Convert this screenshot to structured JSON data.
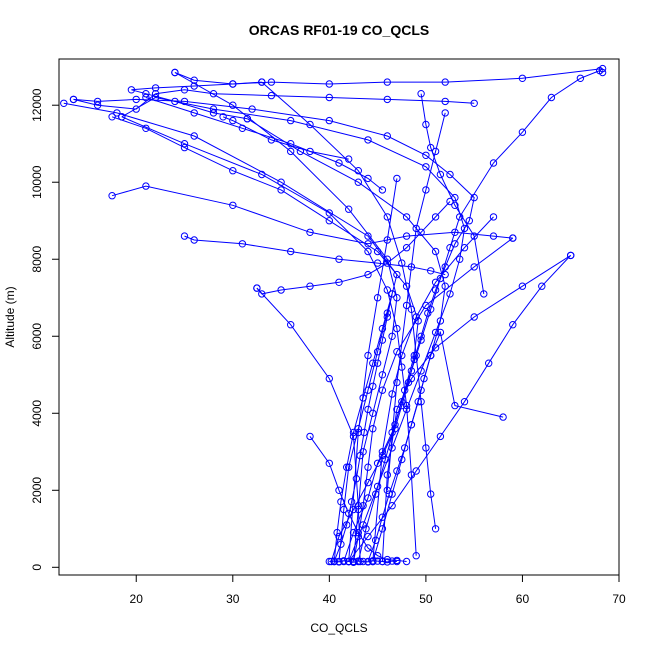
{
  "chart_data": {
    "type": "line",
    "title": "ORCAS RF01-19 CO_QCLS",
    "xlabel": "CO_QCLS",
    "ylabel": "Altitude (m)",
    "xlim": [
      12,
      70
    ],
    "ylim": [
      -200,
      13200
    ],
    "xticks": [
      20,
      30,
      40,
      50,
      60,
      70
    ],
    "yticks": [
      0,
      2000,
      4000,
      6000,
      8000,
      10000,
      12000
    ],
    "grid": false,
    "legend": "none",
    "series_color": "#0000ff",
    "marker": "open-circle",
    "series": [
      {
        "x": [
          40.2,
          41.0,
          42.5,
          44.0,
          45.5,
          46.8,
          47.5,
          48.2,
          48.8,
          49.5,
          50.2,
          51.0,
          52.0,
          53.0,
          54.5,
          55.0,
          52.5,
          50.0,
          46.0,
          40.0,
          32.0,
          25.0,
          20.0,
          16.0,
          13.5
        ],
        "y": [
          150,
          800,
          1500,
          2200,
          2900,
          3600,
          4200,
          4800,
          5400,
          6000,
          6600,
          7200,
          7800,
          8400,
          9000,
          9600,
          10200,
          10700,
          11200,
          11600,
          11900,
          12100,
          12150,
          12100,
          12150
        ]
      },
      {
        "x": [
          12.5,
          18.0,
          26.0,
          35.0,
          44.0,
          47.0,
          46.0,
          45.0,
          44.0,
          43.0,
          42.0,
          41.5,
          41.0
        ],
        "y": [
          12050,
          11800,
          11200,
          10000,
          8600,
          7600,
          6600,
          5600,
          4600,
          3600,
          2600,
          1500,
          150
        ]
      },
      {
        "x": [
          41.5,
          42.5,
          44.0,
          45.0,
          46.5,
          47.5,
          48.5,
          49.5,
          50.5,
          51.5,
          52.5,
          53.5,
          57.0,
          60.0,
          63.0,
          66.0,
          68.0,
          68.3
        ],
        "y": [
          150,
          900,
          1800,
          2700,
          3500,
          4300,
          5100,
          5900,
          6700,
          7500,
          8300,
          9100,
          10500,
          11300,
          12200,
          12700,
          12900,
          12850
        ]
      },
      {
        "x": [
          68.3,
          60.0,
          52.0,
          46.0,
          40.0,
          34.0,
          30.0,
          26.0,
          24.0
        ],
        "y": [
          12950,
          12700,
          12600,
          12600,
          12550,
          12600,
          12550,
          12650,
          12850
        ]
      },
      {
        "x": [
          24.0,
          30.0,
          36.0,
          42.0,
          46.0,
          47.0,
          46.5,
          45.5,
          44.5,
          43.5,
          43.0,
          42.5
        ],
        "y": [
          12850,
          12000,
          10800,
          9300,
          8000,
          7000,
          6000,
          5000,
          4000,
          3000,
          1500,
          150
        ]
      },
      {
        "x": [
          43.0,
          43.8,
          44.8,
          45.8,
          46.8,
          47.8,
          48.8,
          49.2,
          48.0,
          45.0,
          40.0,
          35.0,
          30.0,
          25.0,
          21.0,
          17.5
        ],
        "y": [
          150,
          1000,
          1900,
          2800,
          3700,
          4600,
          5500,
          6400,
          7300,
          8200,
          9000,
          9800,
          10300,
          10900,
          11400,
          11700
        ]
      },
      {
        "x": [
          17.5,
          21.0,
          30.0,
          38.0,
          44.0,
          48.0,
          53.0,
          57.0,
          59.0
        ],
        "y": [
          9650,
          9900,
          9400,
          8700,
          8400,
          8600,
          8700,
          8600,
          8550
        ]
      },
      {
        "x": [
          59.0,
          55.0,
          50.0,
          47.0,
          45.5,
          44.5,
          44.0,
          43.5,
          43.0,
          42.5
        ],
        "y": [
          8550,
          7800,
          6800,
          5600,
          4600,
          3600,
          2600,
          1600,
          800,
          150
        ]
      },
      {
        "x": [
          42.0,
          43.5,
          45.0,
          46.5,
          48.0,
          49.5,
          51.0,
          52.5,
          53.5,
          54.0,
          53.0,
          50.0,
          44.0,
          36.0,
          28.0,
          22.0,
          18.5
        ],
        "y": [
          150,
          1100,
          2100,
          3100,
          4100,
          5100,
          6100,
          7100,
          8000,
          8800,
          9600,
          10400,
          11100,
          11600,
          11900,
          12200,
          11700
        ]
      },
      {
        "x": [
          18.5,
          25.0,
          33.0,
          40.0,
          44.0,
          46.0,
          47.0,
          47.5,
          48.0,
          48.5,
          49.0
        ],
        "y": [
          11700,
          11000,
          10200,
          9200,
          8200,
          7200,
          6200,
          5200,
          4200,
          2400,
          300
        ]
      },
      {
        "x": [
          44.5,
          45.5,
          46.5,
          47.5,
          48.5,
          49.5,
          50.5,
          51.5,
          52.0,
          51.0,
          48.0,
          43.0,
          37.0,
          31.5
        ],
        "y": [
          150,
          1000,
          1900,
          2800,
          3700,
          4600,
          5500,
          6400,
          7300,
          8200,
          9100,
          10000,
          10800,
          11650
        ]
      },
      {
        "x": [
          31.5,
          28.0,
          24.0,
          21.0,
          19.5,
          22.0,
          26.0,
          30.0,
          33.0
        ],
        "y": [
          11650,
          11800,
          12100,
          12300,
          12400,
          12450,
          12500,
          12550,
          12600
        ]
      },
      {
        "x": [
          33.0,
          38.0,
          43.0,
          46.0,
          47.5,
          48.5,
          49.0,
          49.5,
          50.0,
          50.5,
          51.0
        ],
        "y": [
          12600,
          11500,
          10300,
          9100,
          7900,
          6700,
          5500,
          4300,
          3100,
          1900,
          1000
        ]
      },
      {
        "x": [
          40.5,
          41.2,
          41.8,
          42.3,
          42.8,
          43.2,
          43.6,
          44.0,
          44.5,
          45.0,
          45.5,
          46.0,
          46.5
        ],
        "y": [
          150,
          600,
          1100,
          1700,
          2300,
          2900,
          3500,
          4100,
          4700,
          5300,
          5900,
          6500,
          7100
        ]
      },
      {
        "x": [
          46.5,
          45.5,
          44.5,
          43.5,
          42.5,
          41.8,
          41.2,
          40.8,
          40.5
        ],
        "y": [
          7100,
          6200,
          5300,
          4400,
          3500,
          2600,
          1700,
          900,
          150
        ]
      },
      {
        "x": [
          42.0,
          44.0,
          46.5,
          49.0,
          51.5,
          54.0,
          56.5,
          59.0,
          62.0,
          65.0
        ],
        "y": [
          150,
          800,
          1600,
          2500,
          3400,
          4300,
          5300,
          6300,
          7300,
          8100
        ]
      },
      {
        "x": [
          65.0,
          60.0,
          55.0,
          51.0,
          48.5,
          47.0,
          46.0,
          45.5
        ],
        "y": [
          8100,
          7300,
          6500,
          5700,
          4900,
          4100,
          2400,
          150
        ]
      },
      {
        "x": [
          38.0,
          40.0,
          41.0,
          42.0,
          43.0,
          44.0,
          45.0,
          46.0,
          47.0,
          48.0
        ],
        "y": [
          3400,
          2700,
          2000,
          1400,
          900,
          500,
          300,
          200,
          180,
          150
        ]
      },
      {
        "x": [
          40.0,
          40.5,
          41.0,
          41.5,
          42.0,
          42.5,
          43.0,
          43.5,
          44.0,
          44.5,
          45.0,
          45.5,
          46.0,
          46.5,
          47.0
        ],
        "y": [
          150,
          160,
          140,
          170,
          150,
          130,
          160,
          150,
          140,
          170,
          160,
          150,
          140,
          160,
          150
        ]
      },
      {
        "x": [
          13.5,
          16.0,
          20.0,
          22.0,
          25.0,
          28.0,
          34.0,
          40.0,
          46.0,
          52.0,
          55.0
        ],
        "y": [
          12150,
          12000,
          11900,
          12300,
          12400,
          12300,
          12250,
          12200,
          12150,
          12100,
          12050
        ]
      },
      {
        "x": [
          44.0,
          44.8,
          45.5,
          46.2,
          47.0,
          47.8,
          48.5,
          49.2,
          49.8,
          50.5,
          51.5,
          53.0,
          58.0
        ],
        "y": [
          150,
          700,
          1300,
          1900,
          2500,
          3100,
          3700,
          4300,
          4900,
          5500,
          6100,
          4200,
          3900
        ]
      },
      {
        "x": [
          52.5,
          51.0,
          49.5,
          48.0,
          46.0,
          44.0,
          41.0,
          38.0,
          35.0,
          33.0,
          32.5
        ],
        "y": [
          9500,
          9100,
          8700,
          8300,
          7900,
          7600,
          7400,
          7300,
          7200,
          7100,
          7250
        ]
      },
      {
        "x": [
          32.5,
          36.0,
          40.0,
          42.5,
          43.0,
          43.2
        ],
        "y": [
          7250,
          6300,
          4900,
          3400,
          1600,
          150
        ]
      },
      {
        "x": [
          25.0,
          26.0,
          31.0,
          36.0,
          41.0,
          45.0,
          48.5,
          50.5,
          52.0
        ],
        "y": [
          8600,
          8500,
          8400,
          8200,
          8000,
          7900,
          7800,
          7700,
          7600
        ]
      },
      {
        "x": [
          47.0,
          46.0,
          45.0,
          44.0,
          43.0,
          42.0
        ],
        "y": [
          10100,
          8500,
          7000,
          5500,
          3500,
          150
        ]
      },
      {
        "x": [
          57.0,
          54.0,
          51.0,
          49.0,
          47.5,
          46.5,
          45.5,
          44.5
        ],
        "y": [
          9100,
          8300,
          7400,
          6500,
          5500,
          4500,
          3000,
          150
        ]
      },
      {
        "x": [
          49.5,
          50.0,
          50.5,
          51.5,
          53.0,
          55.0,
          56.0
        ],
        "y": [
          12300,
          11500,
          10900,
          10200,
          9400,
          8600,
          7100
        ]
      },
      {
        "x": [
          52.0,
          51.0,
          50.0,
          49.0,
          48.0,
          47.0,
          46.0
        ],
        "y": [
          11800,
          10800,
          9800,
          8800,
          6800,
          4800,
          2000
        ]
      },
      {
        "x": [
          21.0,
          26.0,
          31.0,
          36.0,
          41.0,
          44.0,
          45.5
        ],
        "y": [
          12200,
          11800,
          11400,
          11000,
          10500,
          10100,
          9800
        ]
      },
      {
        "x": [
          29.0,
          30.0,
          34.0,
          38.0,
          42.0
        ],
        "y": [
          11700,
          11600,
          11100,
          10800,
          10600
        ]
      }
    ]
  }
}
